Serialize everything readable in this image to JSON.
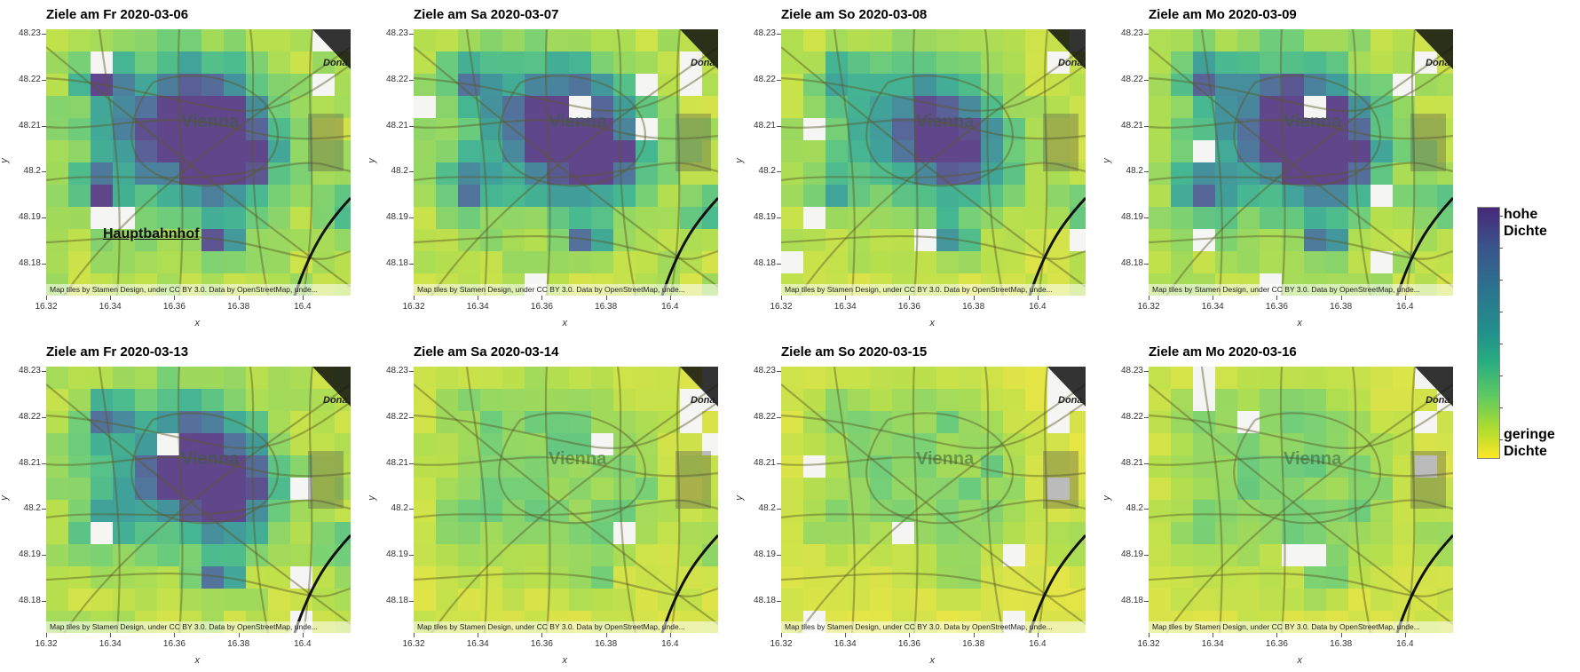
{
  "panels": [
    {
      "title": "Ziele am Fr 2020-03-06",
      "row": 0,
      "col": 0,
      "station_label": "Hauptbahnhof",
      "intensity": 1.0,
      "seed": 3
    },
    {
      "title": "Ziele am Sa 2020-03-07",
      "row": 0,
      "col": 1,
      "station_label": "",
      "intensity": 0.85,
      "seed": 7
    },
    {
      "title": "Ziele am So 2020-03-08",
      "row": 0,
      "col": 2,
      "station_label": "",
      "intensity": 0.6,
      "seed": 11
    },
    {
      "title": "Ziele am Mo 2020-03-09",
      "row": 0,
      "col": 3,
      "station_label": "",
      "intensity": 0.95,
      "seed": 13
    },
    {
      "title": "Ziele am Fr 2020-03-13",
      "row": 1,
      "col": 0,
      "station_label": "",
      "intensity": 0.8,
      "seed": 17
    },
    {
      "title": "Ziele am Sa 2020-03-14",
      "row": 1,
      "col": 1,
      "station_label": "",
      "intensity": 0.35,
      "seed": 19
    },
    {
      "title": "Ziele am So 2020-03-15",
      "row": 1,
      "col": 2,
      "station_label": "",
      "intensity": 0.15,
      "seed": 23
    },
    {
      "title": "Ziele am Mo 2020-03-16",
      "row": 1,
      "col": 3,
      "station_label": "",
      "intensity": 0.3,
      "seed": 29
    }
  ],
  "map": {
    "city_label": "Vienna",
    "river_label": "Dona",
    "attribution": "Map tiles by Stamen Design, under CC BY 3.0. Data by OpenStreetMap, unde..."
  },
  "axes": {
    "xlabel": "x",
    "ylabel": "y",
    "x_ticks": [
      "16.32",
      "16.34",
      "16.36",
      "16.38",
      "16.4"
    ],
    "y_ticks": [
      "48.23",
      "48.22",
      "48.21",
      "48.2",
      "48.19",
      "48.18"
    ],
    "xlim": [
      16.32,
      16.415
    ],
    "ylim": [
      48.173,
      48.231
    ]
  },
  "colorbar": {
    "high_label_1": "hohe",
    "high_label_2": "Dichte",
    "low_label_1": "geringe",
    "low_label_2": "Dichte",
    "colormap": "viridis",
    "high_color": "#472878",
    "low_color": "#fde725"
  }
}
